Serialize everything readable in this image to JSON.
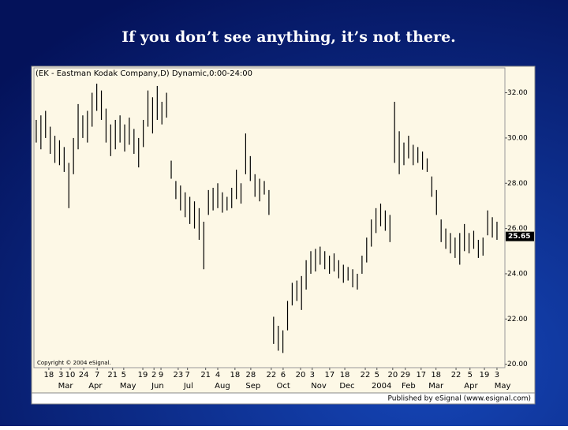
{
  "title": "If you don’t see anything, it’s not there.",
  "chart_data": {
    "type": "high-low",
    "title": "(EK - Eastman Kodak Company,D) Dynamic,0:00-24:00",
    "copyright": "Copyright © 2004 eSignal.",
    "footer": "Published by eSignal (www.esignal.com)",
    "color": "#000000",
    "last_price": 25.65,
    "low": [
      29.8,
      29.5,
      30.0,
      29.3,
      28.9,
      28.8,
      28.5,
      26.9,
      28.4,
      29.5,
      30.0,
      29.8,
      30.5,
      31.2,
      30.8,
      29.8,
      29.2,
      29.5,
      29.8,
      29.4,
      29.7,
      29.3,
      28.7,
      29.6,
      30.5,
      30.2,
      30.8,
      30.6,
      30.9,
      28.2,
      27.3,
      26.8,
      26.5,
      26.2,
      26.0,
      25.5,
      24.2,
      26.6,
      26.8,
      26.9,
      26.7,
      26.8,
      26.9,
      27.3,
      27.1,
      28.4,
      28.1,
      27.4,
      27.2,
      27.5,
      26.6,
      20.9,
      20.6,
      20.5,
      21.5,
      22.6,
      22.8,
      22.4,
      23.3,
      24.0,
      24.1,
      24.4,
      24.2,
      24.0,
      24.1,
      23.8,
      23.6,
      23.7,
      23.4,
      23.3,
      24.0,
      24.5,
      25.2,
      25.8,
      26.1,
      25.9,
      25.4,
      28.9,
      28.4,
      28.8,
      29.1,
      28.8,
      28.9,
      28.6,
      28.5,
      27.4,
      26.6,
      25.4,
      25.1,
      24.9,
      24.7,
      24.4,
      25.0,
      24.9,
      25.1,
      24.7,
      24.8,
      25.7,
      25.6,
      25.5
    ],
    "high": [
      30.8,
      31.0,
      31.2,
      30.5,
      30.1,
      29.9,
      29.6,
      28.9,
      30.0,
      31.5,
      31.0,
      31.2,
      32.0,
      32.4,
      32.1,
      31.3,
      30.6,
      30.8,
      31.0,
      30.6,
      30.9,
      30.4,
      30.0,
      30.8,
      32.1,
      31.8,
      32.3,
      31.6,
      32.0,
      29.0,
      28.1,
      27.9,
      27.6,
      27.4,
      27.2,
      26.9,
      26.3,
      27.7,
      27.8,
      28.0,
      27.6,
      27.4,
      27.8,
      28.6,
      28.0,
      30.2,
      29.2,
      28.4,
      28.2,
      28.1,
      27.7,
      22.1,
      21.7,
      21.5,
      22.8,
      23.6,
      23.7,
      23.9,
      24.6,
      25.0,
      25.1,
      25.2,
      25.0,
      24.8,
      24.9,
      24.6,
      24.4,
      24.3,
      24.2,
      24.0,
      24.8,
      25.6,
      26.4,
      26.9,
      27.1,
      26.8,
      26.6,
      31.6,
      30.3,
      29.8,
      30.1,
      29.7,
      29.6,
      29.4,
      29.1,
      28.3,
      27.7,
      26.4,
      26.0,
      25.8,
      25.6,
      25.8,
      26.2,
      25.8,
      25.9,
      25.5,
      25.6,
      26.8,
      26.5,
      26.3
    ],
    "xlim": [
      -0.5,
      100.7
    ],
    "xticks": [
      {
        "value": 2.7,
        "label": "18"
      },
      {
        "value": 5.3,
        "label": "3"
      },
      {
        "value": 7.3,
        "label": "10"
      },
      {
        "value": 10.2,
        "label": "24"
      },
      {
        "value": 13.1,
        "label": "7"
      },
      {
        "value": 16.4,
        "label": "21"
      },
      {
        "value": 18.8,
        "label": "5"
      },
      {
        "value": 22.9,
        "label": "19"
      },
      {
        "value": 25.3,
        "label": "2"
      },
      {
        "value": 26.8,
        "label": "9"
      },
      {
        "value": 30.5,
        "label": "23"
      },
      {
        "value": 32.5,
        "label": "7"
      },
      {
        "value": 36.4,
        "label": "21"
      },
      {
        "value": 39.0,
        "label": "4"
      },
      {
        "value": 42.7,
        "label": "18"
      },
      {
        "value": 46.1,
        "label": "28"
      },
      {
        "value": 50.5,
        "label": "22"
      },
      {
        "value": 53.05,
        "label": "6"
      },
      {
        "value": 56.8,
        "label": "20"
      },
      {
        "value": 59.3,
        "label": "3"
      },
      {
        "value": 63.05,
        "label": "17"
      },
      {
        "value": 66.3,
        "label": "18"
      },
      {
        "value": 70.7,
        "label": "22"
      },
      {
        "value": 73.2,
        "label": "5"
      },
      {
        "value": 76.6,
        "label": "20"
      },
      {
        "value": 79.3,
        "label": "29"
      },
      {
        "value": 82.7,
        "label": "17"
      },
      {
        "value": 85.9,
        "label": "18"
      },
      {
        "value": 90.2,
        "label": "22"
      },
      {
        "value": 93.2,
        "label": "5"
      },
      {
        "value": 96.3,
        "label": "19"
      },
      {
        "value": 99.0,
        "label": "3"
      }
    ],
    "month_ticks": [
      {
        "value": 6.3,
        "label": "Mar"
      },
      {
        "value": 12.7,
        "label": "Apr"
      },
      {
        "value": 19.7,
        "label": "May"
      },
      {
        "value": 26.1,
        "label": "Jun"
      },
      {
        "value": 32.7,
        "label": "Jul"
      },
      {
        "value": 40.0,
        "label": "Aug"
      },
      {
        "value": 46.6,
        "label": "Sep"
      },
      {
        "value": 53.1,
        "label": "Oct"
      },
      {
        "value": 60.7,
        "label": "Nov"
      },
      {
        "value": 66.8,
        "label": "Dec"
      },
      {
        "value": 74.2,
        "label": "2004"
      },
      {
        "value": 80.0,
        "label": "Feb"
      },
      {
        "value": 85.9,
        "label": "Mar"
      },
      {
        "value": 93.4,
        "label": "Apr"
      },
      {
        "value": 100.2,
        "label": "May"
      }
    ],
    "ylim": [
      19.85,
      33.1
    ],
    "yticks": [
      {
        "value": 20,
        "label": "20.00"
      },
      {
        "value": 22,
        "label": "22.00"
      },
      {
        "value": 24,
        "label": "24.00"
      },
      {
        "value": 26,
        "label": "26.00"
      },
      {
        "value": 28,
        "label": "28.00"
      },
      {
        "value": 30,
        "label": "30.00"
      },
      {
        "value": 32,
        "label": "32.00"
      }
    ]
  }
}
